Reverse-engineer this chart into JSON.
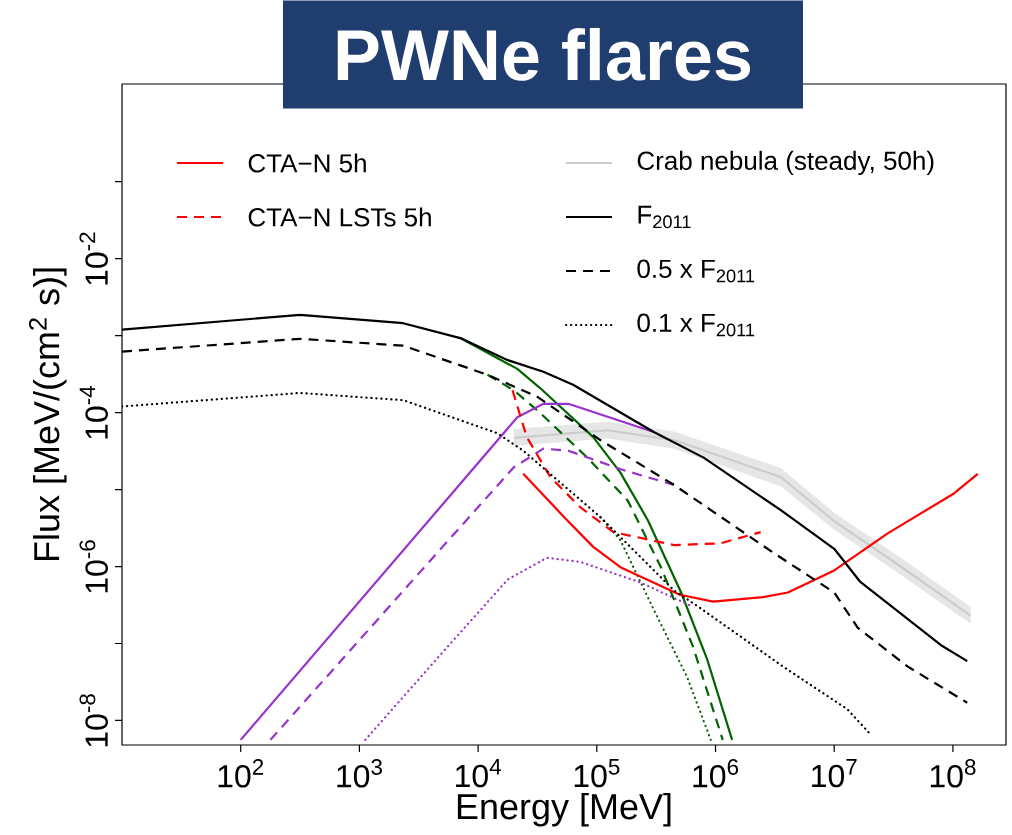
{
  "chart_data": {
    "type": "line",
    "title": "PWNe flares",
    "xlabel": "Energy [MeV]",
    "ylabel": "Flux [MeV/(cm$^{2}$ s)]",
    "log": "xy",
    "legend": "top",
    "xlim": [
      10,
      280000000.0
    ],
    "ylim": [
      4.8e-09,
      1.86
    ],
    "xticks": [
      {
        "value": 100,
        "label": "10$^{2}$"
      },
      {
        "value": 1000,
        "label": "10$^{3}$"
      },
      {
        "value": 10000,
        "label": "10$^{4}$"
      },
      {
        "value": 100000,
        "label": "10$^{5}$"
      },
      {
        "value": 1000000,
        "label": "10$^{6}$"
      },
      {
        "value": 10000000,
        "label": "10$^{7}$"
      },
      {
        "value": 100000000,
        "label": "10$^{8}$"
      }
    ],
    "yticks": [
      {
        "value": 0.1,
        "label": null
      },
      {
        "value": 0.01,
        "label": "10$^{-2}$"
      },
      {
        "value": 0.001,
        "label": null
      },
      {
        "value": 0.0001,
        "label": "10$^{-4}$"
      },
      {
        "value": 1e-05,
        "label": null
      },
      {
        "value": 1e-06,
        "label": "10$^{-6}$"
      },
      {
        "value": 1e-07,
        "label": null
      },
      {
        "value": 1e-08,
        "label": "10$^{-8}$"
      }
    ],
    "series": [
      {
        "name": "CTA−N 5h",
        "color": "#ff0000",
        "line_style": "solid",
        "x": [
          24000,
          56200,
          93300,
          158000,
          501000,
          955000,
          2510000,
          4070000,
          10000000,
          28200000,
          102000000,
          162000000
        ],
        "values": [
          1.6e-05,
          4e-06,
          1.8e-06,
          9.8e-07,
          4.3e-07,
          3.5e-07,
          4e-07,
          4.6e-07,
          8.9e-07,
          2.7e-06,
          8.9e-06,
          1.6e-05
        ]
      },
      {
        "name": "CTA−N LSTs 5h",
        "color": "#ff0000",
        "line_style": "dashed",
        "x": [
          19500,
          25700,
          40700,
          72400,
          138000,
          447000,
          1100000,
          2400000
        ],
        "values": [
          0.000195,
          4.8e-05,
          1.45e-05,
          5.9e-06,
          2.8e-06,
          1.9e-06,
          2e-06,
          2.8e-06
        ]
      },
      {
        "name": "Crab nebula (steady, 50h)",
        "color": "#cccccc",
        "line_style": "solid",
        "x": [
          20000,
          123000,
          447000,
          3550000,
          10000000,
          36300000,
          141000000
        ],
        "values": [
          4.7e-05,
          5.9e-05,
          4.4e-05,
          1.45e-05,
          3.9e-06,
          1e-06,
          2.3e-07
        ],
        "upper": [
          6.1e-05,
          7.6e-05,
          5.7e-05,
          1.9e-05,
          5e-06,
          1.3e-06,
          3e-07
        ],
        "lower": [
          3.7e-05,
          4.6e-05,
          3.4e-05,
          1.1e-05,
          3e-06,
          7.8e-07,
          1.8e-07
        ]
      },
      {
        "name": "F$_{2011}$",
        "color": "#000000",
        "line_style": "solid",
        "x": [
          10,
          316,
          2340,
          7080,
          17800,
          35500,
          63100,
          302000,
          794000,
          3550000,
          10000000,
          16600000,
          79400000,
          132000000
        ],
        "values": [
          0.0012,
          0.00186,
          0.00145,
          0.00093,
          0.00048,
          0.00034,
          0.00023,
          5.6e-05,
          2.6e-05,
          5.4e-06,
          1.7e-06,
          6.3e-07,
          9.5e-08,
          5.9e-08
        ]
      },
      {
        "name": "0.5 x F$_{2011}$",
        "color": "#000000",
        "line_style": "dashed",
        "x": [
          10,
          316,
          2340,
          12000,
          31600,
          107000,
          447000,
          3090000,
          10000000,
          15800000,
          41700000,
          132000000
        ],
        "values": [
          0.00062,
          0.00091,
          0.00074,
          0.00031,
          0.00016,
          4.4e-05,
          1.15e-05,
          1.5e-06,
          4.6e-07,
          1.6e-07,
          5e-08,
          1.7e-08
        ]
      },
      {
        "name": "0.1 x F$_{2011}$",
        "color": "#000000",
        "line_style": "dotted",
        "x": [
          10,
          316,
          2340,
          14500,
          24000,
          107000,
          447000,
          741000,
          3720000,
          12900000,
          20400000
        ],
        "values": [
          0.00012,
          0.00018,
          0.000145,
          5.4e-05,
          3.2e-05,
          4.4e-06,
          4.9e-07,
          2.9e-07,
          5e-08,
          1.4e-08,
          6.5e-09
        ]
      },
      {
        "color": "#006400",
        "line_style": "solid",
        "x": [
          7080,
          21400,
          33100,
          93300,
          158000,
          269000,
          513000,
          851000,
          1380000
        ],
        "values": [
          0.00093,
          0.00037,
          0.00021,
          4.8e-05,
          1.66e-05,
          4e-06,
          4.6e-07,
          6.2e-08,
          5.6e-09
        ]
      },
      {
        "color": "#006400",
        "line_style": "dashed",
        "x": [
          12000,
          20000,
          33100,
          83200,
          182000,
          347000,
          646000,
          1150000
        ],
        "values": [
          0.00031,
          0.000195,
          0.0001,
          2.6e-05,
          7.2e-06,
          9.8e-07,
          9.1e-08,
          5.6e-09
        ]
      },
      {
        "color": "#006400",
        "line_style": "dotted",
        "x": [
          107000,
          158000,
          302000,
          575000,
          912000
        ],
        "values": [
          4.4e-06,
          2.2e-06,
          2.75e-07,
          3.7e-08,
          5.6e-09
        ]
      },
      {
        "color": "#9932cc",
        "line_style": "solid",
        "x": [
          100,
          21400,
          35500,
          57500,
          302000
        ],
        "values": [
          5.6e-09,
          8.7e-05,
          0.00013,
          0.00013,
          5.6e-05
        ]
      },
      {
        "color": "#9932cc",
        "line_style": "dashed",
        "x": [
          178,
          5010,
          20000,
          35500,
          57500,
          166000,
          447000
        ],
        "values": [
          5.6e-09,
          1.8e-06,
          1.95e-05,
          3.4e-05,
          3.2e-05,
          1.8e-05,
          1.15e-05
        ]
      },
      {
        "color": "#9932cc",
        "line_style": "dotted",
        "x": [
          1120,
          5250,
          17800,
          38000,
          72400,
          234000,
          646000
        ],
        "values": [
          5.6e-09,
          8.3e-08,
          6.8e-07,
          1.3e-06,
          1.15e-06,
          6.2e-07,
          3e-07
        ]
      }
    ]
  }
}
